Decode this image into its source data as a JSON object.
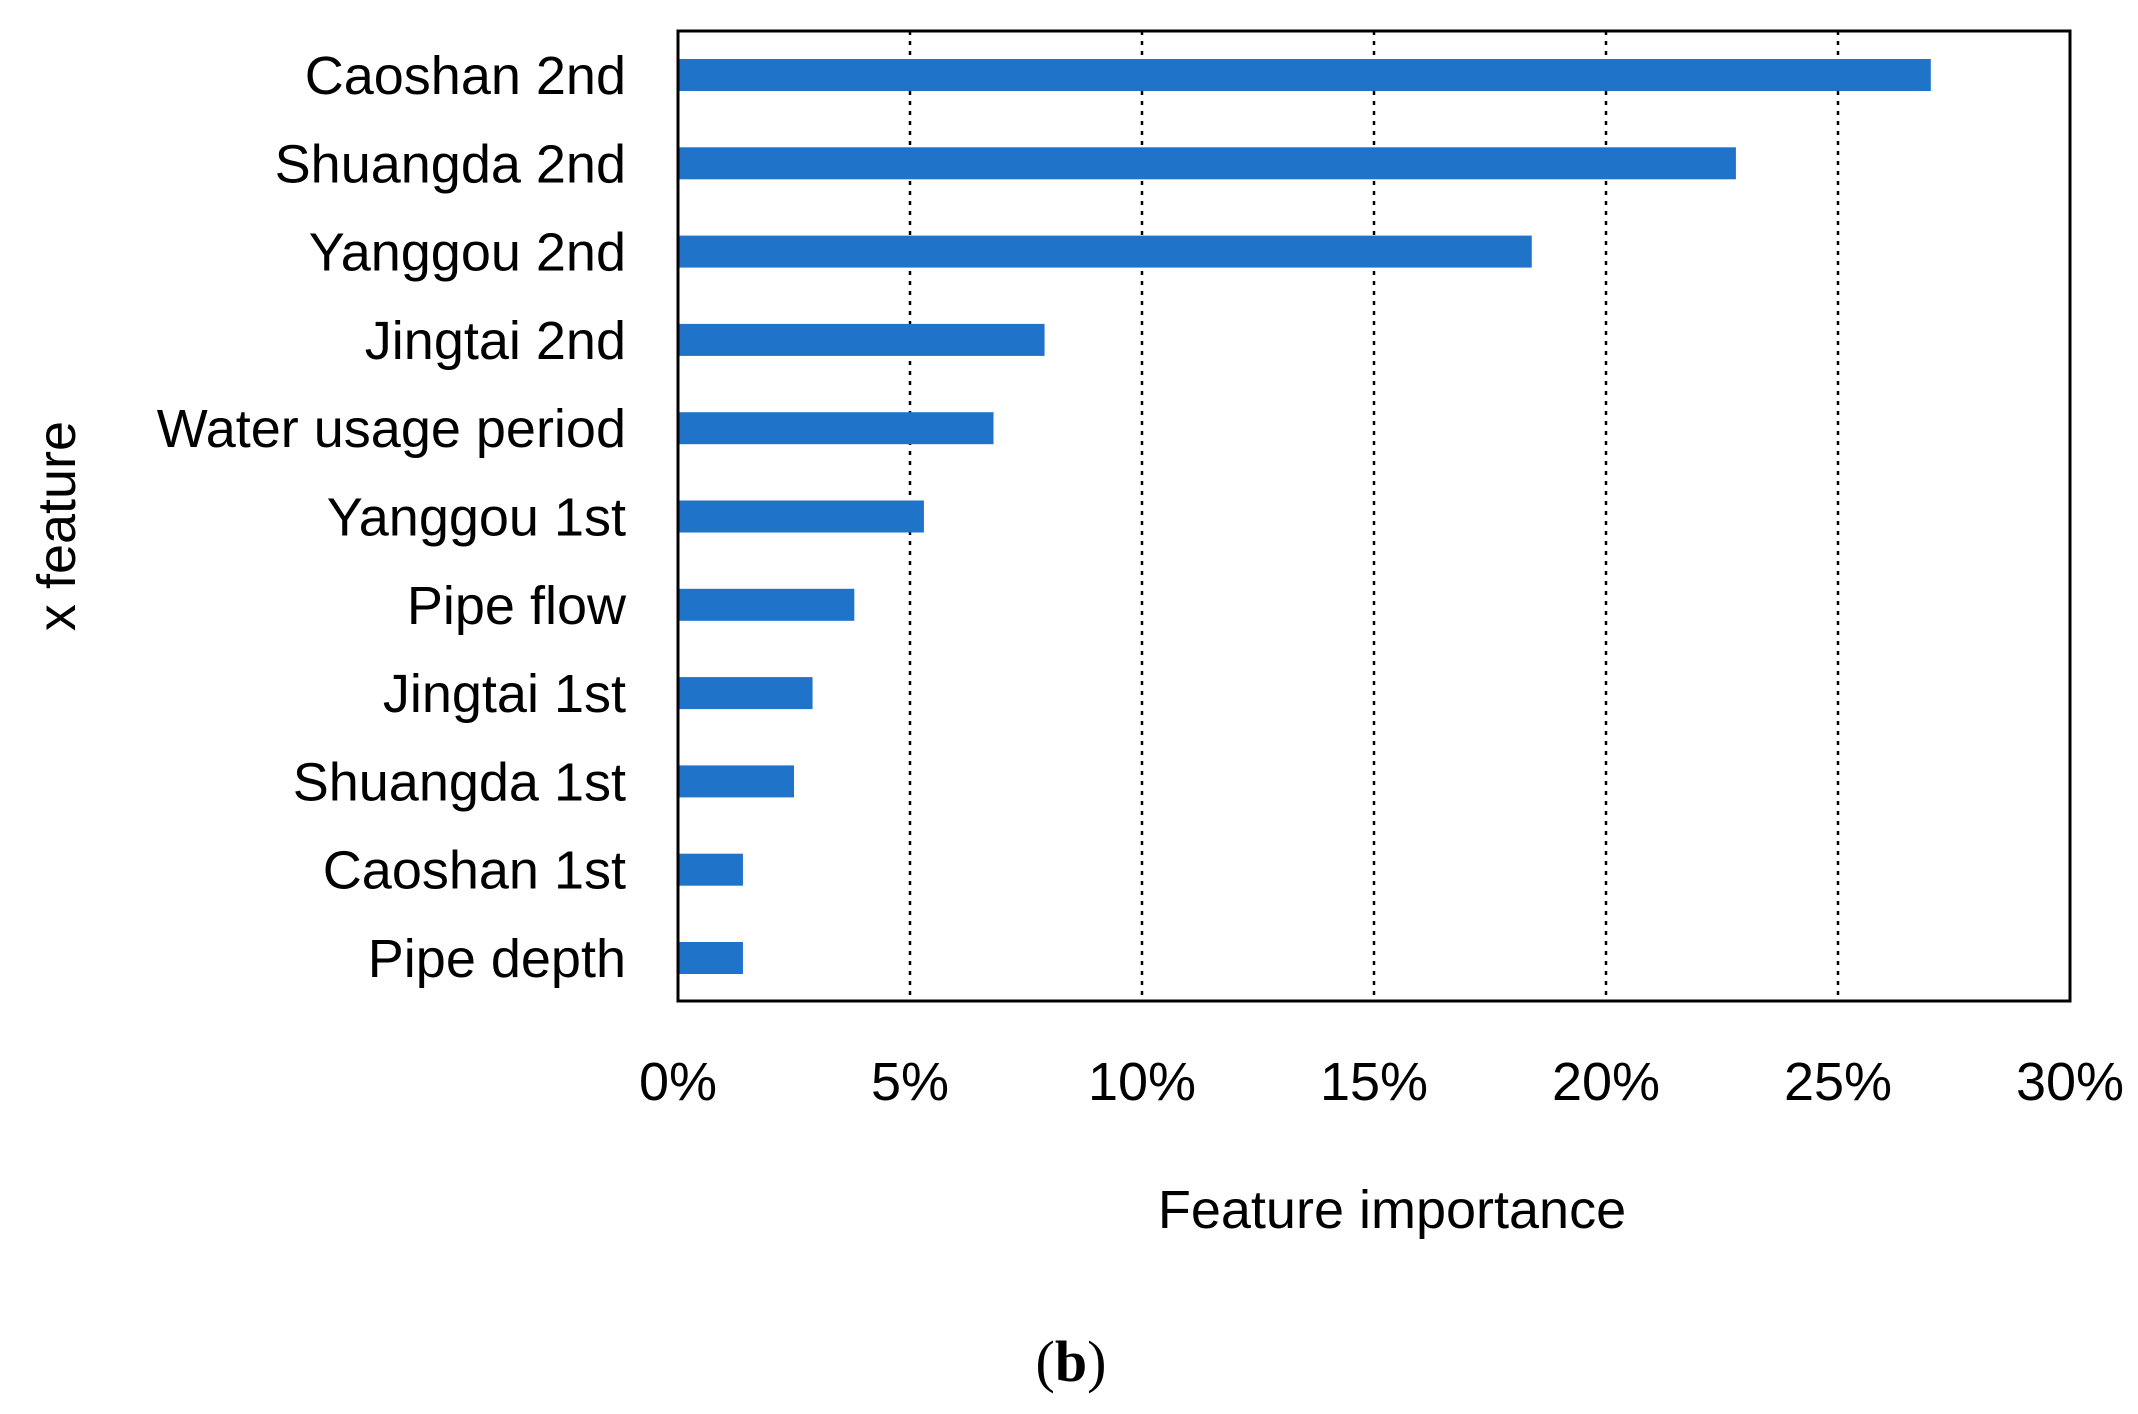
{
  "chart_data": {
    "type": "bar",
    "orientation": "horizontal",
    "categories": [
      "Caoshan 2nd",
      "Shuangda 2nd",
      "Yanggou 2nd",
      "Jingtai 2nd",
      "Water usage period",
      "Yanggou 1st",
      "Pipe flow",
      "Jingtai 1st",
      "Shuangda 1st",
      "Caoshan 1st",
      "Pipe depth"
    ],
    "values": [
      27.0,
      22.8,
      18.4,
      7.9,
      6.8,
      5.3,
      3.8,
      2.9,
      2.5,
      1.4,
      1.4
    ],
    "xlabel": "Feature importance",
    "ylabel": "x feature",
    "xlim": [
      0,
      30
    ],
    "xticks": [
      "0%",
      "5%",
      "10%",
      "15%",
      "20%",
      "25%",
      "30%"
    ],
    "grid": "vertical dotted",
    "bar_color": "#1f73c9",
    "panel_label_open": "(",
    "panel_label_letter": "b",
    "panel_label_close": ")"
  }
}
